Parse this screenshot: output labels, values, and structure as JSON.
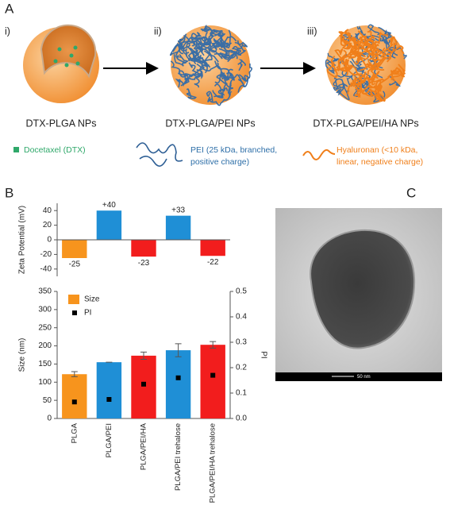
{
  "panels": {
    "a": {
      "label": "A",
      "steps": [
        "i)",
        "ii)",
        "iii)"
      ],
      "nanoparticles": [
        "DTX-PLGA NPs",
        "DTX-PLGA/PEI NPs",
        "DTX-PLGA/PEI/HA NPs"
      ],
      "legend": [
        {
          "lines": [
            "Docetaxel (DTX)"
          ]
        },
        {
          "lines": [
            "PEI (25 kDa, branched,",
            "positive charge)"
          ]
        },
        {
          "lines": [
            "Hyaluronan (<10 kDa,",
            "linear, negative charge)"
          ]
        }
      ]
    },
    "b": {
      "label": "B"
    },
    "c": {
      "label": "C",
      "scale_bar": "50 nm"
    }
  },
  "chart_data": [
    {
      "type": "bar",
      "ylabel": "Zeta Potential (mV)",
      "values": [
        -25,
        40,
        -23,
        33,
        -22
      ],
      "value_labels": [
        "-25",
        "+40",
        "-23",
        "+33",
        "-22"
      ],
      "colors": [
        "#f7941d",
        "#1f8fd6",
        "#f21d1d",
        "#1f8fd6",
        "#f21d1d"
      ],
      "ylim": [
        -50,
        50
      ],
      "yticks": [
        -40,
        -20,
        0,
        20,
        40
      ]
    },
    {
      "type": "bar",
      "ylabel": "Size (nm)",
      "y2label": "PI",
      "categories": [
        "PLGA",
        "PLGA/PEI",
        "PLGA/PEI/HA",
        "PLGA/PEI trehalose",
        "PLGA/PEI/HA trehalose"
      ],
      "series": [
        {
          "name": "Size",
          "color": "#f7941d",
          "colors": [
            "#f7941d",
            "#1f8fd6",
            "#f21d1d",
            "#1f8fd6",
            "#f21d1d"
          ],
          "values": [
            122,
            155,
            173,
            188,
            203
          ],
          "errors": [
            7,
            0,
            10,
            18,
            9
          ]
        },
        {
          "name": "PI",
          "type": "scatter",
          "axis": "y2",
          "color": "#000000",
          "values": [
            0.065,
            0.075,
            0.135,
            0.16,
            0.17
          ]
        }
      ],
      "ylim": [
        0,
        350
      ],
      "yticks": [
        0,
        50,
        100,
        150,
        200,
        250,
        300,
        350
      ],
      "y2lim": [
        0,
        0.5
      ],
      "y2ticks": [
        {
          "value": 0,
          "label": "0.0"
        },
        0.1,
        0.2,
        0.3,
        0.4,
        0.5
      ],
      "legend": "upper left"
    }
  ]
}
